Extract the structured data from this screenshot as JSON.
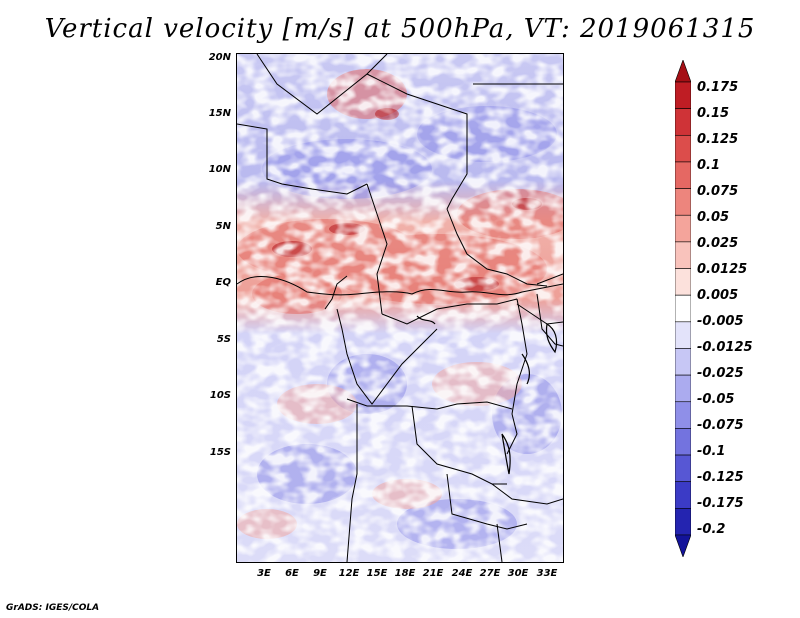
{
  "title": "Vertical velocity [m/s] at 500hPa, VT: 2019061315",
  "footer": "GrADS: IGES/COLA",
  "map": {
    "variable": "Vertical velocity",
    "units": "m/s",
    "level": "500hPa",
    "valid_time": "2019061315",
    "lat_labels": [
      "20N",
      "15N",
      "10N",
      "5N",
      "EQ",
      "5S",
      "10S",
      "15S"
    ],
    "lon_labels": [
      "3E",
      "6E",
      "9E",
      "12E",
      "15E",
      "18E",
      "21E",
      "24E",
      "27E",
      "30E",
      "33E"
    ]
  },
  "colorbar": {
    "labels": [
      "0.175",
      "0.15",
      "0.125",
      "0.1",
      "0.075",
      "0.05",
      "0.025",
      "0.0125",
      "0.005",
      "-0.005",
      "-0.0125",
      "-0.025",
      "-0.05",
      "-0.075",
      "-0.1",
      "-0.125",
      "-0.175",
      "-0.2"
    ],
    "colors": [
      "#a50f15",
      "#bf1d24",
      "#cf3337",
      "#dc4d4b",
      "#e56863",
      "#ed857d",
      "#f4a49b",
      "#f9c3bc",
      "#fce1dc",
      "#ffffff",
      "#e3e3fa",
      "#c7c7f5",
      "#ababef",
      "#8f8fe8",
      "#7373df",
      "#5757d4",
      "#3b3bc6",
      "#2424b0",
      "#13139a"
    ]
  }
}
